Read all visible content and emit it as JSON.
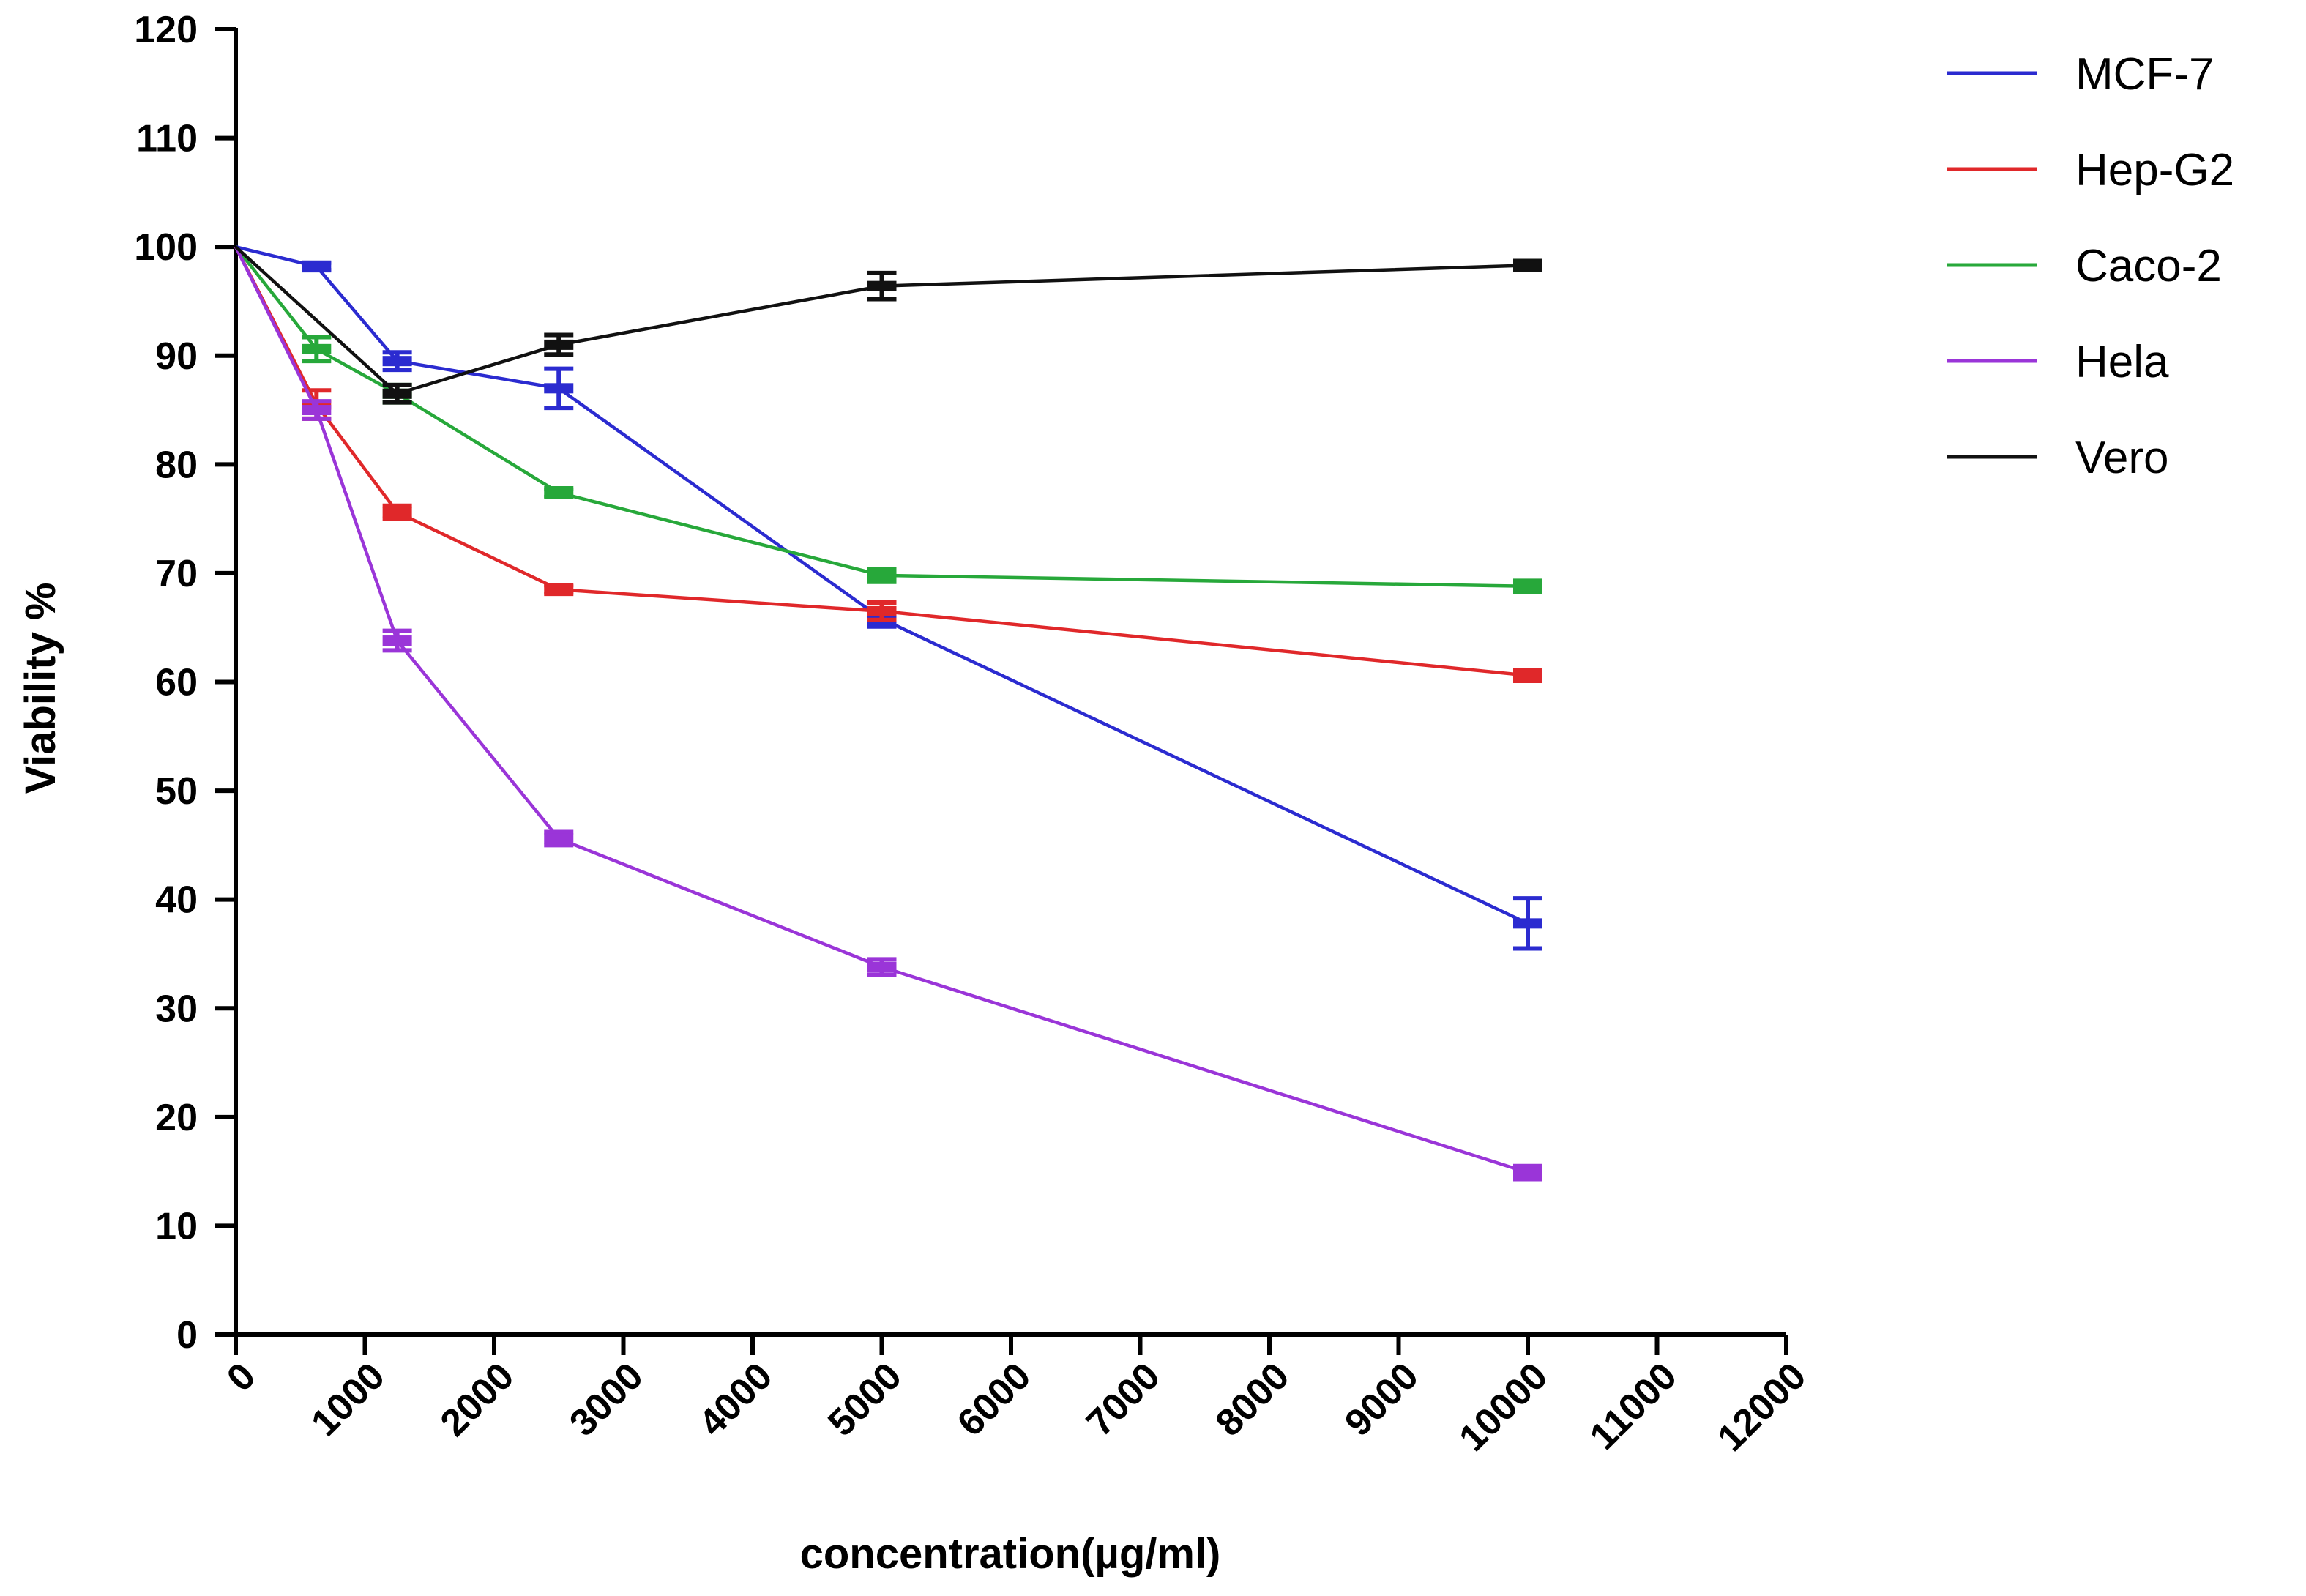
{
  "chart_data": {
    "type": "line",
    "xlabel": "concentration(µg/ml)",
    "ylabel": "Viability %",
    "xlim": [
      0,
      12000
    ],
    "ylim": [
      0,
      120
    ],
    "x_ticks": [
      "0",
      "1000",
      "2000",
      "3000",
      "4000",
      "5000",
      "6000",
      "7000",
      "8000",
      "9000",
      "10000",
      "11000",
      "12000"
    ],
    "y_ticks": [
      "0",
      "10",
      "20",
      "30",
      "40",
      "50",
      "60",
      "70",
      "80",
      "90",
      "100",
      "110",
      "120"
    ],
    "grid": false,
    "legend_position": "top-right",
    "series": [
      {
        "name": "MCF-7",
        "color": "#2b2bd0",
        "x": [
          0,
          625,
          1250,
          2500,
          5000,
          10000
        ],
        "y": [
          100,
          98.2,
          89.5,
          87,
          65.8,
          37.8
        ],
        "err": [
          0,
          0.3,
          0.8,
          1.8,
          0.7,
          2.3
        ]
      },
      {
        "name": "Hep-G2",
        "color": "#e0282a",
        "x": [
          0,
          625,
          1250,
          2500,
          5000,
          10000
        ],
        "y": [
          100,
          85.5,
          75.6,
          68.5,
          66.5,
          60.6
        ],
        "err": [
          0,
          1.3,
          0.6,
          0.4,
          0.8,
          0.5
        ]
      },
      {
        "name": "Caco-2",
        "color": "#27a83a",
        "x": [
          0,
          625,
          1250,
          2500,
          5000,
          10000
        ],
        "y": [
          100,
          90.6,
          86.5,
          77.4,
          69.8,
          68.8
        ],
        "err": [
          0,
          1.1,
          0.8,
          0.4,
          0.6,
          0.5
        ]
      },
      {
        "name": "Hela",
        "color": "#9a35d8",
        "x": [
          0,
          625,
          1250,
          2500,
          5000,
          10000
        ],
        "y": [
          100,
          85,
          63.8,
          45.6,
          33.8,
          14.9
        ],
        "err": [
          0,
          0.8,
          0.9,
          0.6,
          0.7,
          0.6
        ]
      },
      {
        "name": "Vero",
        "color": "#111111",
        "x": [
          0,
          1250,
          2500,
          5000,
          10000
        ],
        "y": [
          100,
          86.5,
          91,
          96.4,
          98.3
        ],
        "err": [
          0,
          0.8,
          0.9,
          1.2,
          0.4
        ]
      }
    ]
  }
}
